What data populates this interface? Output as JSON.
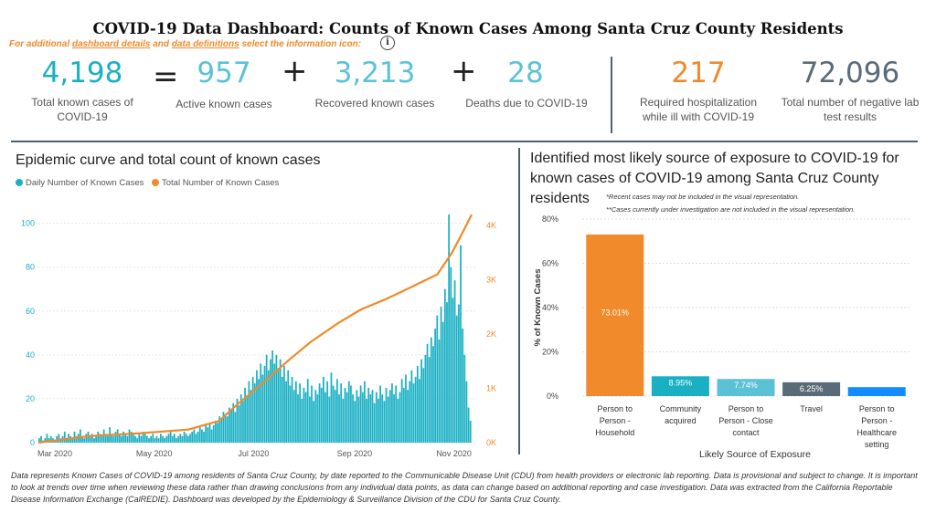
{
  "title": "COVID-19 Data Dashboard: Counts of Known Cases Among Santa Cruz County Residents",
  "info": {
    "prefix": "For additional ",
    "link1": "dashboard details",
    "mid": " and ",
    "link2": "data definitions",
    "suffix": " select the information icon:",
    "icon_glyph": "i"
  },
  "kpis": {
    "total": {
      "value": "4,198",
      "label": "Total known cases of COVID-19",
      "color": "#1ab0c4"
    },
    "equals": "=",
    "active": {
      "value": "957",
      "label": "Active known cases",
      "color": "#5bc2d6"
    },
    "plus1": "+",
    "recovered": {
      "value": "3,213",
      "label": "Recovered known cases",
      "color": "#5bc2d6"
    },
    "plus2": "+",
    "deaths": {
      "value": "28",
      "label": "Deaths due to COVID-19",
      "color": "#5bc2d6"
    },
    "hospital": {
      "value": "217",
      "label": "Required hospitalization while ill with COVID-19",
      "color": "#f08a2b"
    },
    "negative": {
      "value": "72,096",
      "label": "Total number of negative lab test results",
      "color": "#5a6b78"
    }
  },
  "left_section": {
    "title": "Epidemic curve and total count of known cases",
    "legend": [
      {
        "label": "Daily Number of Known Cases",
        "color": "#1ab0c4"
      },
      {
        "label": "Total Number of Known Cases",
        "color": "#f08a2b"
      }
    ]
  },
  "right_section": {
    "title": "Identified most likely source of exposure to COVID-19 for known cases of COVID-19 among Santa Cruz County residents",
    "note1": "*Recent cases may not be included in the visual representation.",
    "note2": "**Cases currently under investigation are not included in the visual representation."
  },
  "chart_data": [
    {
      "type": "bar",
      "title": "Epidemic curve and total count of known cases",
      "xlabel": "",
      "ylabel": "",
      "x_ticks": [
        "Mar 2020",
        "May 2020",
        "Jul 2020",
        "Sep 2020",
        "Nov 2020"
      ],
      "y_ticks": [
        "0",
        "20",
        "40",
        "60",
        "80",
        "100"
      ],
      "y2_ticks": [
        "0K",
        "1K",
        "2K",
        "3K",
        "4K"
      ],
      "ylim": [
        0,
        104
      ],
      "y2lim": [
        0,
        4200
      ],
      "series": [
        {
          "name": "Daily Number of Known Cases",
          "type": "bar",
          "color": "#1ab0c4",
          "axis": "left",
          "x_range": [
            "2020-03-01",
            "2020-11-22"
          ],
          "values_note": "daily counts, approx",
          "values": [
            2,
            3,
            1,
            2,
            4,
            2,
            3,
            2,
            1,
            3,
            4,
            2,
            3,
            5,
            2,
            4,
            3,
            2,
            5,
            3,
            4,
            6,
            3,
            2,
            4,
            5,
            3,
            4,
            2,
            3,
            5,
            4,
            3,
            6,
            4,
            3,
            7,
            4,
            3,
            5,
            6,
            4,
            3,
            5,
            4,
            3,
            6,
            5,
            4,
            3,
            2,
            4,
            3,
            5,
            4,
            3,
            2,
            3,
            4,
            2,
            3,
            2,
            4,
            3,
            2,
            3,
            4,
            5,
            3,
            4,
            2,
            3,
            4,
            3,
            5,
            4,
            3,
            4,
            5,
            6,
            4,
            5,
            7,
            6,
            5,
            8,
            7,
            9,
            6,
            8,
            10,
            9,
            12,
            11,
            14,
            13,
            12,
            16,
            15,
            18,
            14,
            20,
            17,
            22,
            19,
            25,
            21,
            28,
            24,
            30,
            27,
            33,
            29,
            36,
            31,
            35,
            40,
            33,
            38,
            42,
            36,
            40,
            34,
            38,
            30,
            35,
            28,
            33,
            26,
            30,
            24,
            28,
            22,
            27,
            20,
            25,
            23,
            29,
            21,
            26,
            19,
            24,
            22,
            27,
            25,
            30,
            23,
            28,
            21,
            32,
            26,
            24,
            29,
            22,
            27,
            20,
            25,
            23,
            28,
            26,
            22,
            19,
            24,
            21,
            26,
            23,
            28,
            20,
            25,
            22,
            24,
            18,
            23,
            20,
            26,
            22,
            19,
            25,
            21,
            24,
            27,
            22,
            26,
            20,
            23,
            29,
            25,
            31,
            24,
            28,
            33,
            27,
            30,
            35,
            29,
            38,
            34,
            40,
            45,
            39,
            48,
            44,
            52,
            58,
            47,
            62,
            55,
            70,
            64,
            104,
            80,
            66,
            74,
            58,
            63,
            90,
            52,
            40,
            28,
            16,
            10
          ]
        },
        {
          "name": "Total Number of Known Cases",
          "type": "line",
          "color": "#f08a2b",
          "axis": "right",
          "values_note": "cumulative, approx",
          "points": [
            [
              "2020-03-01",
              0
            ],
            [
              "2020-04-01",
              120
            ],
            [
              "2020-05-01",
              170
            ],
            [
              "2020-06-01",
              240
            ],
            [
              "2020-06-20",
              400
            ],
            [
              "2020-07-01",
              700
            ],
            [
              "2020-07-15",
              1050
            ],
            [
              "2020-08-01",
              1500
            ],
            [
              "2020-08-15",
              1850
            ],
            [
              "2020-09-01",
              2200
            ],
            [
              "2020-09-15",
              2450
            ],
            [
              "2020-10-01",
              2650
            ],
            [
              "2020-10-15",
              2850
            ],
            [
              "2020-11-01",
              3100
            ],
            [
              "2020-11-10",
              3500
            ],
            [
              "2020-11-17",
              3900
            ],
            [
              "2020-11-22",
              4198
            ]
          ]
        }
      ]
    },
    {
      "type": "bar",
      "title": "Identified most likely source of exposure to COVID-19 for known cases of COVID-19 among Santa Cruz County residents",
      "xlabel": "Likely Source of Exposure",
      "ylabel": "% of Known Cases",
      "ylim": [
        0,
        80
      ],
      "y_ticks": [
        "0%",
        "20%",
        "40%",
        "60%",
        "80%"
      ],
      "categories": [
        "Person to Person - Household",
        "Community acquired",
        "Person to Person - Close contact",
        "Travel",
        "Person to Person - Healthcare setting"
      ],
      "category_lines": [
        [
          "Person to",
          "Person -",
          "Household"
        ],
        [
          "Community",
          "acquired"
        ],
        [
          "Person to",
          "Person - Close",
          "contact"
        ],
        [
          "Travel"
        ],
        [
          "Person to",
          "Person -",
          "Healthcare",
          "setting"
        ]
      ],
      "values": [
        73.01,
        8.95,
        7.74,
        6.25,
        4.05
      ],
      "data_labels": [
        "73.01%",
        "8.95%",
        "7.74%",
        "6.25%",
        ""
      ],
      "colors": [
        "#f08a2b",
        "#1ab0c4",
        "#5bc2d6",
        "#5a6b78",
        "#118dff"
      ]
    }
  ],
  "footer": "Data represents Known Cases of COVID-19 among residents of Santa Cruz County, by date reported to the Communicable Disease Unit (CDU) from health providers or electronic lab reporting.  Data is provisional and subject to change.  It is important to look at trends over time when reviewing these data rather than drawing conclusions from any individual data points, as data can change based on additional reporting and case investigation.  Data was extracted from the California Reportable Disease Information Exchange (CalREDIE).  Dashboard was developed by the Epidemiology & Surveillance Division of the CDU for Santa Cruz County."
}
